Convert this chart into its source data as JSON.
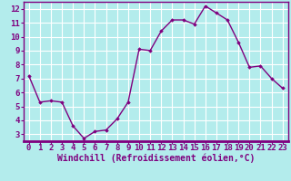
{
  "x": [
    0,
    1,
    2,
    3,
    4,
    5,
    6,
    7,
    8,
    9,
    10,
    11,
    12,
    13,
    14,
    15,
    16,
    17,
    18,
    19,
    20,
    21,
    22,
    23
  ],
  "y": [
    7.2,
    5.3,
    5.4,
    5.3,
    3.6,
    2.7,
    3.2,
    3.3,
    4.1,
    5.3,
    9.1,
    9.0,
    10.4,
    11.2,
    11.2,
    10.9,
    12.2,
    11.7,
    11.2,
    9.6,
    7.8,
    7.9,
    7.0,
    6.3
  ],
  "line_color": "#7f007f",
  "marker": "D",
  "marker_size": 1.8,
  "bg_color": "#b3ecec",
  "grid_color": "#ffffff",
  "xlabel": "Windchill (Refroidissement éolien,°C)",
  "ylim": [
    2.5,
    12.5
  ],
  "xlim": [
    -0.5,
    23.5
  ],
  "yticks": [
    3,
    4,
    5,
    6,
    7,
    8,
    9,
    10,
    11,
    12
  ],
  "xticks": [
    0,
    1,
    2,
    3,
    4,
    5,
    6,
    7,
    8,
    9,
    10,
    11,
    12,
    13,
    14,
    15,
    16,
    17,
    18,
    19,
    20,
    21,
    22,
    23
  ],
  "tick_label_fontsize": 6.5,
  "xlabel_fontsize": 7.0,
  "line_width": 1.0,
  "spine_color": "#7f007f",
  "bottom_bar_color": "#7f007f"
}
